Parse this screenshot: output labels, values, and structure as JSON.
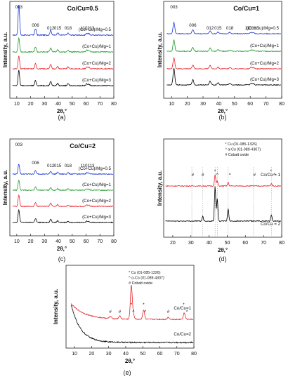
{
  "figure": {
    "colors": {
      "black": "#000000",
      "red": "#e8232a",
      "green": "#1f9a2a",
      "blue": "#1f38d6",
      "frame": "#222222",
      "refline": "#9a9a9a"
    }
  },
  "chart_data": [
    {
      "id": "a",
      "caption": "(a)",
      "type": "line",
      "title": "Co/Cu=0.5",
      "xlabel": "2θ,°",
      "ylabel": "Intensity, a.u.",
      "xlim": [
        5,
        80
      ],
      "xticks": [
        10,
        20,
        30,
        40,
        50,
        60,
        70,
        80
      ],
      "grid": false,
      "peak_labels": [
        {
          "text": "003",
          "x": 11.5
        },
        {
          "text": "006",
          "x": 23.5
        },
        {
          "text": "012",
          "x": 34.5
        },
        {
          "text": "015",
          "x": 39.5
        },
        {
          "text": "018",
          "x": 47
        },
        {
          "text": "110113",
          "x": 61
        }
      ],
      "series": [
        {
          "name": "(Co+Cu)/Mg=0.5",
          "color": "blue",
          "peaks": [
            [
              11.5,
              4.8
            ],
            [
              23.5,
              1.0
            ],
            [
              34.5,
              0.8
            ],
            [
              39.5,
              0.4
            ],
            [
              47,
              0.3
            ],
            [
              60.5,
              0.3
            ],
            [
              62,
              0.25
            ]
          ]
        },
        {
          "name": "(Co+Cu)/Mg=1",
          "color": "green",
          "peaks": [
            [
              11.5,
              2.2
            ],
            [
              23.5,
              0.8
            ],
            [
              34.5,
              0.7
            ],
            [
              39.5,
              0.35
            ],
            [
              47,
              0.3
            ],
            [
              60.5,
              0.3
            ],
            [
              62,
              0.25
            ]
          ]
        },
        {
          "name": "(Co+Cu)/Mg=2",
          "color": "red",
          "peaks": [
            [
              11.5,
              2.0
            ],
            [
              23.5,
              0.8
            ],
            [
              34.5,
              0.7
            ],
            [
              39.5,
              0.35
            ],
            [
              47,
              0.3
            ],
            [
              60.5,
              0.3
            ],
            [
              62,
              0.25
            ]
          ]
        },
        {
          "name": "(Co+Cu)/Mg=3",
          "color": "black",
          "peaks": [
            [
              11.5,
              2.4
            ],
            [
              23.5,
              0.8
            ],
            [
              34.5,
              0.7
            ],
            [
              39.5,
              0.35
            ],
            [
              47,
              0.3
            ],
            [
              60.5,
              0.3
            ],
            [
              62,
              0.25
            ]
          ]
        }
      ]
    },
    {
      "id": "b",
      "caption": "(b)",
      "type": "line",
      "title": "Co/Cu=1",
      "xlabel": "2θ,°",
      "ylabel": "Intensity, a.u.",
      "xlim": [
        5,
        80
      ],
      "xticks": [
        10,
        20,
        30,
        40,
        50,
        60,
        70,
        80
      ],
      "grid": false,
      "peak_labels": [
        {
          "text": "003",
          "x": 11.5
        },
        {
          "text": "006",
          "x": 23.5
        },
        {
          "text": "012",
          "x": 34.5
        },
        {
          "text": "015",
          "x": 39.5
        },
        {
          "text": "018",
          "x": 47
        },
        {
          "text": "110113",
          "x": 61
        }
      ],
      "series": [
        {
          "name": "(Co+Cu)/Mg=0.5",
          "color": "blue",
          "peaks": [
            [
              11.5,
              2.0
            ],
            [
              23.5,
              0.7
            ],
            [
              34.5,
              0.5
            ],
            [
              39.5,
              0.3
            ],
            [
              47,
              0.25
            ],
            [
              60.5,
              0.25
            ],
            [
              62,
              0.2
            ]
          ]
        },
        {
          "name": "(Co+Cu)/Mg=1",
          "color": "green",
          "peaks": [
            [
              11.5,
              2.0
            ],
            [
              23.5,
              0.7
            ],
            [
              34.5,
              0.6
            ],
            [
              39.5,
              0.3
            ],
            [
              47,
              0.25
            ],
            [
              60.5,
              0.25
            ],
            [
              62,
              0.2
            ]
          ]
        },
        {
          "name": "(Co+Cu)/Mg=2",
          "color": "red",
          "peaks": [
            [
              11.5,
              2.0
            ],
            [
              23.5,
              0.7
            ],
            [
              34.5,
              0.6
            ],
            [
              39.5,
              0.3
            ],
            [
              47,
              0.25
            ],
            [
              60.5,
              0.25
            ],
            [
              62,
              0.2
            ]
          ]
        },
        {
          "name": "(Co+Cu)/Mg=3",
          "color": "black",
          "peaks": [
            [
              11.5,
              3.0
            ],
            [
              23.5,
              0.9
            ],
            [
              34.5,
              0.7
            ],
            [
              39.5,
              0.35
            ],
            [
              47,
              0.3
            ],
            [
              60.5,
              0.3
            ],
            [
              62,
              0.25
            ]
          ]
        }
      ]
    },
    {
      "id": "c",
      "caption": "(c)",
      "type": "line",
      "title": "Co/Cu=2",
      "xlabel": "2θ,°",
      "ylabel": "Intensity, a.u.",
      "xlim": [
        5,
        80
      ],
      "xticks": [
        10,
        20,
        30,
        40,
        50,
        60,
        70,
        80
      ],
      "grid": false,
      "peak_labels": [
        {
          "text": "003",
          "x": 11.5
        },
        {
          "text": "006",
          "x": 23.5
        },
        {
          "text": "012",
          "x": 34.5
        },
        {
          "text": "015",
          "x": 39.5
        },
        {
          "text": "018",
          "x": 47
        },
        {
          "text": "110113",
          "x": 61
        }
      ],
      "series": [
        {
          "name": "(Co+Cu)/Mg=0.5",
          "color": "blue",
          "peaks": [
            [
              11.5,
              1.8
            ],
            [
              23.5,
              0.6
            ],
            [
              34.5,
              0.5
            ],
            [
              39.5,
              0.3
            ],
            [
              47,
              0.25
            ],
            [
              60.5,
              0.25
            ],
            [
              62,
              0.2
            ]
          ]
        },
        {
          "name": "(Co+Cu)/Mg=1",
          "color": "green",
          "peaks": [
            [
              11.5,
              1.8
            ],
            [
              23.5,
              0.6
            ],
            [
              34.5,
              0.5
            ],
            [
              39.5,
              0.3
            ],
            [
              47,
              0.25
            ],
            [
              60.5,
              0.25
            ],
            [
              62,
              0.2
            ]
          ]
        },
        {
          "name": "(Co+Cu)/Mg=2",
          "color": "red",
          "peaks": [
            [
              11.5,
              2.0
            ],
            [
              23.5,
              0.7
            ],
            [
              34.5,
              0.6
            ],
            [
              39.5,
              0.3
            ],
            [
              47,
              0.25
            ],
            [
              60.5,
              0.25
            ],
            [
              62,
              0.2
            ]
          ]
        },
        {
          "name": "(Co+Cu)/Mg=3",
          "color": "black",
          "peaks": [
            [
              11.5,
              2.2
            ],
            [
              23.5,
              0.7
            ],
            [
              34.5,
              0.6
            ],
            [
              39.5,
              0.3
            ],
            [
              47,
              0.25
            ],
            [
              60.5,
              0.25
            ],
            [
              62,
              0.2
            ]
          ]
        }
      ]
    },
    {
      "id": "d",
      "caption": "(d)",
      "type": "line",
      "title": "",
      "xlabel": "2θ,°",
      "ylabel": "Intensity, a.u.",
      "xlim": [
        15,
        80
      ],
      "xticks": [
        20,
        30,
        40,
        50,
        60,
        70,
        80
      ],
      "grid": false,
      "legend": [
        "* Cu (01-085-1326)",
        "^ α-Co (01-089-4307)",
        "# Cobalt oxide"
      ],
      "reference_lines": [
        30.5,
        36.5,
        43.3,
        44.5,
        50.5,
        64.5,
        74.3
      ],
      "markers": [
        {
          "symbol": "#",
          "x": 31
        },
        {
          "symbol": "#",
          "x": 36.5
        },
        {
          "symbol": "*",
          "x": 43.3
        },
        {
          "symbol": "^",
          "x": 44.5
        },
        {
          "symbol": "^",
          "x": 51.5
        },
        {
          "symbol": "#",
          "x": 65
        },
        {
          "symbol": "*",
          "x": 74
        },
        {
          "symbol": "^",
          "x": 76
        }
      ],
      "series": [
        {
          "name": "Co/Cu = 1",
          "color": "red",
          "peaks": [
            [
              43.3,
              1.8
            ],
            [
              44.5,
              0.8
            ],
            [
              50.5,
              0.6
            ],
            [
              74.3,
              0.4
            ]
          ]
        },
        {
          "name": "Co/Cu = 2",
          "color": "black",
          "peaks": [
            [
              36.5,
              0.8
            ],
            [
              43.3,
              5.5
            ],
            [
              44.5,
              3.5
            ],
            [
              50.5,
              2.0
            ],
            [
              74.3,
              1.0
            ]
          ]
        }
      ]
    },
    {
      "id": "e",
      "caption": "(e)",
      "type": "line",
      "title": "",
      "xlabel": "2θ,°",
      "ylabel": "Intensity, a.u.",
      "xlim": [
        5,
        80
      ],
      "xticks": [
        10,
        20,
        30,
        40,
        50,
        60,
        70,
        80
      ],
      "grid": false,
      "legend": [
        "* Cu (01-085-1326)",
        "^ α-Co (01-089-4307)",
        "# Cobalt oxide"
      ],
      "markers": [
        {
          "symbol": "#",
          "x": 31
        },
        {
          "symbol": "#",
          "x": 36.5
        },
        {
          "symbol": "*",
          "x": 43.3
        },
        {
          "symbol": "^",
          "x": 44.5
        },
        {
          "symbol": "*",
          "x": 50.5
        },
        {
          "symbol": "^",
          "x": 51.5
        },
        {
          "symbol": "#",
          "x": 65
        },
        {
          "symbol": "*",
          "x": 74
        },
        {
          "symbol": "^",
          "x": 76
        }
      ],
      "series": [
        {
          "name": "Co/Cu=1",
          "color": "red",
          "peaks": [
            [
              31,
              0.3
            ],
            [
              36.5,
              0.4
            ],
            [
              43.3,
              4.8
            ],
            [
              44.5,
              0.6
            ],
            [
              50.5,
              1.3
            ],
            [
              65,
              0.3
            ],
            [
              74.3,
              0.9
            ]
          ]
        },
        {
          "name": "Co/Cu=2",
          "color": "black",
          "peaks": []
        }
      ]
    }
  ]
}
